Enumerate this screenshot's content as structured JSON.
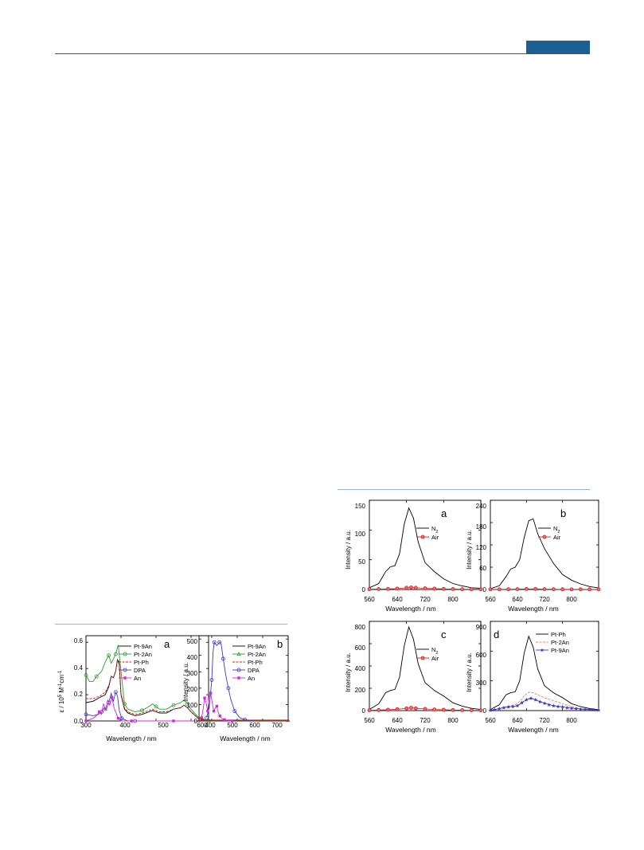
{
  "header": {
    "accent_color": "#1c5f93"
  },
  "figures": {
    "left": {
      "panels": [
        {
          "id": "a",
          "panel_letter": "a",
          "ylabel_main": "ε / 10",
          "ylabel_sup1": "5",
          "ylabel_mid": " M",
          "ylabel_sup2": "-1",
          "ylabel_end": "cm",
          "ylabel_sup3": "-1",
          "xlabel": "Wavelength / nm",
          "xticks": [
            "300",
            "400",
            "500",
            "600"
          ],
          "yticks": [
            "0.0",
            "0.2",
            "0.4",
            "0.6"
          ],
          "legend": [
            "Pt-9An",
            "Pt-2An",
            "Pt-Ph",
            "DPA",
            "An"
          ]
        },
        {
          "id": "b",
          "panel_letter": "b",
          "ylabel": "Intensity / a.u.",
          "xlabel": "Wavelength / nm",
          "xticks": [
            "400",
            "500",
            "600",
            "700"
          ],
          "yticks": [
            "0",
            "100",
            "200",
            "300",
            "400",
            "500"
          ],
          "legend": [
            "Pt-9An",
            "Pt-2An",
            "Pt-Ph",
            "DPA",
            "An"
          ]
        }
      ]
    },
    "right": {
      "panels": [
        {
          "id": "a",
          "panel_letter": "a",
          "ylabel": "Intensity / a.u.",
          "xlabel": "Wavelength / nm",
          "xticks": [
            "560",
            "640",
            "720",
            "800"
          ],
          "yticks": [
            "0",
            "50",
            "100",
            "150"
          ],
          "legend": [
            {
              "label": "N",
              "sub": "2"
            },
            {
              "label": "Air",
              "sub": ""
            }
          ]
        },
        {
          "id": "b",
          "panel_letter": "b",
          "ylabel": "Intensity / a.u.",
          "xlabel": "Wavelength / nm",
          "xticks": [
            "560",
            "640",
            "720",
            "800"
          ],
          "yticks": [
            "0",
            "60",
            "120",
            "180",
            "240"
          ],
          "legend": [
            {
              "label": "N",
              "sub": "2"
            },
            {
              "label": "Air",
              "sub": ""
            }
          ]
        },
        {
          "id": "c",
          "panel_letter": "c",
          "ylabel": "Intensity / a.u.",
          "xlabel": "Wavelength / nm",
          "xticks": [
            "560",
            "640",
            "720",
            "800"
          ],
          "yticks": [
            "0",
            "200",
            "400",
            "600",
            "800"
          ],
          "legend": [
            {
              "label": "N",
              "sub": "2"
            },
            {
              "label": "Air",
              "sub": ""
            }
          ]
        },
        {
          "id": "d",
          "panel_letter": "d",
          "ylabel": "Intensity / a.u.",
          "xlabel": "Wavelength / nm",
          "xticks": [
            "560",
            "640",
            "720",
            "800"
          ],
          "yticks": [
            "0",
            "300",
            "600",
            "900"
          ],
          "legend": [
            {
              "label": "Pt-Ph",
              "sub": ""
            },
            {
              "label": "Pt-2An",
              "sub": ""
            },
            {
              "label": "Pt-9An",
              "sub": ""
            }
          ]
        }
      ]
    }
  },
  "chart_data": [
    {
      "type": "line",
      "panel": "left-a",
      "xlabel": "Wavelength / nm",
      "ylabel": "ε / 10^5 M^-1 cm^-1",
      "xlim": [
        300,
        650
      ],
      "ylim": [
        0,
        0.65
      ],
      "series": [
        {
          "name": "Pt-9An",
          "color": "#000000",
          "style": "solid",
          "x": [
            300,
            320,
            340,
            355,
            365,
            372,
            378,
            385,
            390,
            395,
            400,
            410,
            420,
            440,
            460,
            480,
            490,
            500,
            510,
            530,
            550,
            570,
            580,
            590,
            600,
            620,
            650
          ],
          "y": [
            0.14,
            0.15,
            0.18,
            0.2,
            0.26,
            0.34,
            0.33,
            0.38,
            0.47,
            0.43,
            0.2,
            0.09,
            0.06,
            0.04,
            0.05,
            0.07,
            0.08,
            0.07,
            0.06,
            0.06,
            0.09,
            0.1,
            0.12,
            0.1,
            0.07,
            0.02,
            0.0
          ]
        },
        {
          "name": "Pt-2An",
          "color": "#2ca02c",
          "style": "solid-circle",
          "x": [
            300,
            310,
            320,
            330,
            345,
            355,
            365,
            372,
            378,
            385,
            392,
            400,
            410,
            420,
            440,
            460,
            480,
            490,
            500,
            510,
            530,
            550,
            570,
            580,
            590,
            600,
            620,
            650
          ],
          "y": [
            0.35,
            0.3,
            0.3,
            0.34,
            0.38,
            0.45,
            0.5,
            0.44,
            0.47,
            0.51,
            0.58,
            0.38,
            0.13,
            0.09,
            0.07,
            0.08,
            0.11,
            0.13,
            0.11,
            0.09,
            0.09,
            0.12,
            0.14,
            0.16,
            0.13,
            0.09,
            0.03,
            0.0
          ]
        },
        {
          "name": "Pt-Ph",
          "color": "#e41a1c",
          "style": "dash",
          "x": [
            300,
            320,
            340,
            355,
            365,
            372,
            378,
            385,
            390,
            395,
            400,
            410,
            420,
            440,
            460,
            480,
            490,
            500,
            510,
            530,
            550,
            570,
            580,
            590,
            600,
            620,
            650
          ],
          "y": [
            0.17,
            0.17,
            0.19,
            0.22,
            0.27,
            0.34,
            0.33,
            0.38,
            0.47,
            0.45,
            0.21,
            0.1,
            0.07,
            0.05,
            0.06,
            0.08,
            0.09,
            0.08,
            0.07,
            0.07,
            0.09,
            0.1,
            0.12,
            0.1,
            0.07,
            0.02,
            0.0
          ]
        },
        {
          "name": "DPA",
          "color": "#3a3acb",
          "style": "solid-circle",
          "x": [
            300,
            320,
            335,
            345,
            352,
            358,
            365,
            372,
            378,
            385,
            390,
            395,
            402,
            410,
            420,
            440
          ],
          "y": [
            0.05,
            0.04,
            0.05,
            0.07,
            0.1,
            0.09,
            0.14,
            0.21,
            0.15,
            0.22,
            0.19,
            0.08,
            0.02,
            0.01,
            0.0,
            0.0
          ]
        },
        {
          "name": "An",
          "color": "#e020e0",
          "style": "solid-square",
          "x": [
            300,
            320,
            330,
            338,
            344,
            350,
            356,
            362,
            368,
            374,
            380,
            386,
            392,
            400,
            410,
            430,
            460,
            500,
            550,
            650
          ],
          "y": [
            0.0,
            0.02,
            0.04,
            0.07,
            0.05,
            0.13,
            0.09,
            0.16,
            0.12,
            0.18,
            0.1,
            0.06,
            0.02,
            0.0,
            0.0,
            0.0,
            0.0,
            0.0,
            0.0,
            0.0
          ]
        }
      ]
    },
    {
      "type": "line",
      "panel": "left-b",
      "xlabel": "Wavelength / nm",
      "ylabel": "Intensity / a.u.",
      "xlim": [
        350,
        700
      ],
      "ylim": [
        0,
        520
      ],
      "series": [
        {
          "name": "Pt-9An",
          "color": "#000000",
          "style": "solid",
          "x": [
            350,
            500,
            700
          ],
          "y": [
            5,
            5,
            5
          ]
        },
        {
          "name": "Pt-2An",
          "color": "#2ca02c",
          "style": "solid-triangle",
          "x": [
            350,
            500,
            700
          ],
          "y": [
            4,
            4,
            4
          ]
        },
        {
          "name": "Pt-Ph",
          "color": "#e41a1c",
          "style": "dash",
          "x": [
            350,
            500,
            700
          ],
          "y": [
            3,
            3,
            3
          ]
        },
        {
          "name": "DPA",
          "color": "#3a3acb",
          "style": "solid-circle",
          "x": [
            380,
            390,
            400,
            405,
            410,
            420,
            430,
            437,
            445,
            455,
            465,
            475,
            490,
            510,
            530,
            560
          ],
          "y": [
            20,
            80,
            250,
            420,
            480,
            460,
            480,
            470,
            380,
            280,
            200,
            130,
            60,
            20,
            8,
            3
          ]
        },
        {
          "name": "An",
          "color": "#e020e0",
          "style": "solid-square",
          "x": [
            360,
            366,
            372,
            378,
            384,
            390,
            396,
            402,
            408,
            414,
            420,
            426,
            432,
            440,
            450,
            465,
            480
          ],
          "y": [
            20,
            70,
            140,
            110,
            60,
            150,
            170,
            110,
            60,
            80,
            90,
            50,
            30,
            15,
            8,
            3,
            0
          ]
        }
      ]
    },
    {
      "type": "line",
      "panel": "right-a",
      "xlabel": "Wavelength / nm",
      "ylabel": "Intensity / a.u.",
      "xlim": [
        560,
        800
      ],
      "ylim": [
        0,
        150
      ],
      "series": [
        {
          "name": "N2",
          "color": "#000000",
          "style": "solid",
          "x": [
            560,
            580,
            595,
            605,
            615,
            625,
            635,
            645,
            655,
            665,
            680,
            700,
            720,
            740,
            760,
            780,
            800
          ],
          "y": [
            3,
            10,
            30,
            38,
            40,
            60,
            110,
            137,
            120,
            80,
            45,
            30,
            18,
            10,
            6,
            3,
            2
          ]
        },
        {
          "name": "Air",
          "color": "#e41a1c",
          "style": "circle",
          "x": [
            560,
            580,
            600,
            620,
            640,
            650,
            660,
            680,
            700,
            720,
            740,
            760,
            780,
            800
          ],
          "y": [
            0.5,
            0.8,
            1,
            1.5,
            3,
            3.5,
            3,
            2,
            1.5,
            1,
            0.8,
            0.5,
            0.5,
            0.4
          ]
        }
      ]
    },
    {
      "type": "line",
      "panel": "right-b",
      "xlabel": "Wavelength / nm",
      "ylabel": "Intensity / a.u.",
      "xlim": [
        560,
        800
      ],
      "ylim": [
        0,
        240
      ],
      "series": [
        {
          "name": "N2",
          "color": "#000000",
          "style": "solid",
          "x": [
            560,
            580,
            595,
            605,
            615,
            625,
            635,
            645,
            655,
            665,
            680,
            700,
            720,
            740,
            760,
            780,
            800
          ],
          "y": [
            2,
            10,
            35,
            55,
            60,
            80,
            140,
            185,
            190,
            150,
            110,
            70,
            40,
            25,
            15,
            8,
            4
          ]
        },
        {
          "name": "Air",
          "color": "#e41a1c",
          "style": "circle",
          "x": [
            560,
            580,
            600,
            620,
            640,
            660,
            680,
            700,
            720,
            740,
            760,
            780,
            800
          ],
          "y": [
            0.5,
            0.5,
            0.8,
            1,
            1.5,
            1.5,
            1,
            0.8,
            0.5,
            0.5,
            0.4,
            0.4,
            0.3
          ]
        }
      ]
    },
    {
      "type": "line",
      "panel": "right-c",
      "xlabel": "Wavelength / nm",
      "ylabel": "Intensity / a.u.",
      "xlim": [
        560,
        800
      ],
      "ylim": [
        0,
        800
      ],
      "series": [
        {
          "name": "N2",
          "color": "#000000",
          "style": "solid",
          "x": [
            560,
            580,
            595,
            605,
            615,
            625,
            635,
            645,
            655,
            665,
            680,
            700,
            720,
            740,
            760,
            780,
            800
          ],
          "y": [
            10,
            60,
            160,
            180,
            190,
            300,
            580,
            750,
            640,
            420,
            250,
            180,
            130,
            70,
            40,
            20,
            10
          ]
        },
        {
          "name": "Air",
          "color": "#e41a1c",
          "style": "circle",
          "x": [
            560,
            580,
            600,
            620,
            640,
            650,
            660,
            680,
            700,
            720,
            740,
            760,
            780,
            800
          ],
          "y": [
            3,
            5,
            8,
            12,
            20,
            25,
            20,
            15,
            10,
            8,
            5,
            4,
            3,
            2
          ]
        }
      ]
    },
    {
      "type": "line",
      "panel": "right-d",
      "xlabel": "Wavelength / nm",
      "ylabel": "Intensity / a.u.",
      "xlim": [
        560,
        800
      ],
      "ylim": [
        0,
        900
      ],
      "series": [
        {
          "name": "Pt-Ph",
          "color": "#000000",
          "style": "solid",
          "x": [
            560,
            580,
            595,
            605,
            615,
            625,
            635,
            645,
            655,
            665,
            680,
            700,
            720,
            740,
            760,
            780,
            800
          ],
          "y": [
            10,
            60,
            160,
            180,
            190,
            300,
            580,
            750,
            640,
            420,
            250,
            180,
            130,
            70,
            40,
            20,
            10
          ]
        },
        {
          "name": "Pt-2An",
          "color": "#f08060",
          "style": "dash",
          "x": [
            560,
            580,
            595,
            605,
            615,
            625,
            635,
            645,
            655,
            665,
            680,
            700,
            720,
            740,
            760,
            780,
            800
          ],
          "y": [
            5,
            20,
            40,
            50,
            60,
            90,
            150,
            185,
            180,
            160,
            130,
            100,
            70,
            40,
            20,
            10,
            5
          ]
        },
        {
          "name": "Pt-9An",
          "color": "#3a3acb",
          "style": "solid-star",
          "x": [
            560,
            570,
            580,
            590,
            600,
            610,
            620,
            630,
            640,
            650,
            660,
            670,
            680,
            690,
            700,
            710,
            720,
            730,
            740,
            750,
            760,
            770,
            780,
            790,
            800
          ],
          "y": [
            3,
            10,
            20,
            30,
            38,
            42,
            50,
            80,
            110,
            125,
            110,
            90,
            75,
            60,
            50,
            42,
            38,
            30,
            25,
            20,
            15,
            12,
            10,
            8,
            6
          ]
        }
      ]
    }
  ]
}
